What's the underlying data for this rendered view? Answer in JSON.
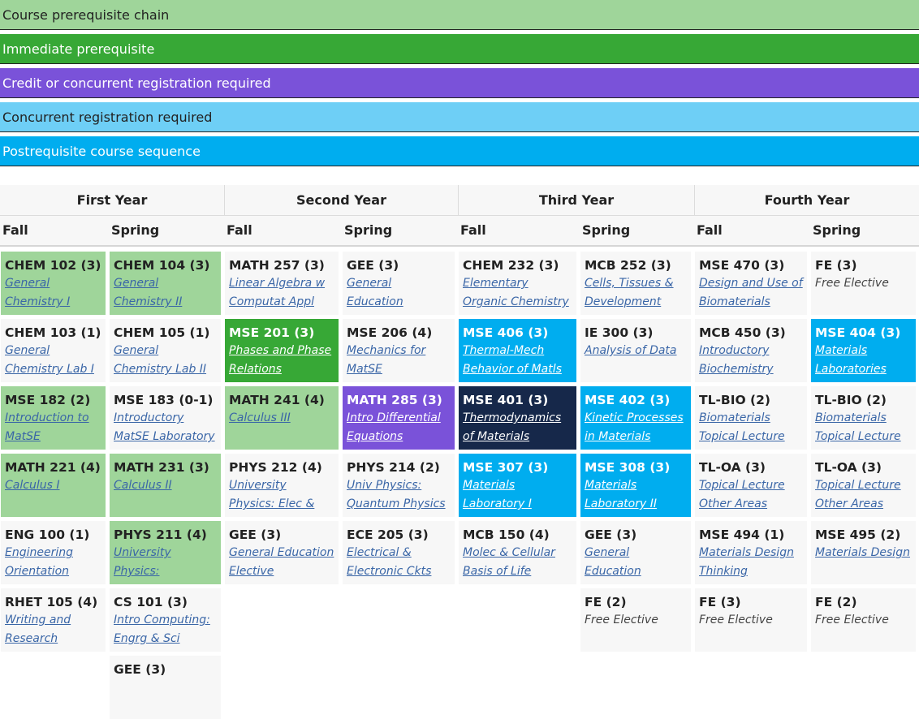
{
  "legend": [
    {
      "label": "Course prerequisite chain",
      "type": "chain"
    },
    {
      "label": "Immediate prerequisite",
      "type": "immediate"
    },
    {
      "label": "Credit or concurrent registration required",
      "type": "credit"
    },
    {
      "label": "Concurrent registration required",
      "type": "concurrent"
    },
    {
      "label": "Postrequisite course sequence",
      "type": "post"
    }
  ],
  "years": [
    "First Year",
    "Second Year",
    "Third Year",
    "Fourth Year"
  ],
  "semesters": [
    "Fall",
    "Spring",
    "Fall",
    "Spring",
    "Fall",
    "Spring",
    "Fall",
    "Spring"
  ],
  "columns": [
    [
      {
        "code": "CHEM 102 (3)",
        "title": "General Chemistry I",
        "type": "chain",
        "link": true
      },
      {
        "code": "CHEM 103 (1)",
        "title": "General Chemistry Lab I",
        "type": "none",
        "link": true
      },
      {
        "code": "MSE 182 (2)",
        "title": "Introduction to MatSE",
        "type": "chain",
        "link": true
      },
      {
        "code": "MATH 221 (4)",
        "title": "Calculus I",
        "type": "chain",
        "link": true
      },
      {
        "code": "ENG 100 (1)",
        "title": "Engineering Orientation",
        "type": "none",
        "link": true
      },
      {
        "code": "RHET 105 (4)",
        "title": "Writing and Research",
        "type": "none",
        "link": true
      }
    ],
    [
      {
        "code": "CHEM 104 (3)",
        "title": "General Chemistry II",
        "type": "chain",
        "link": true
      },
      {
        "code": "CHEM 105 (1)",
        "title": "General Chemistry Lab II",
        "type": "none",
        "link": true
      },
      {
        "code": "MSE 183 (0-1)",
        "title": "Introductory MatSE Laboratory",
        "type": "none",
        "link": true
      },
      {
        "code": "MATH 231 (3)",
        "title": "Calculus II",
        "type": "chain",
        "link": true
      },
      {
        "code": "PHYS 211 (4)",
        "title": "University Physics: Mechanics",
        "type": "chain",
        "link": true
      },
      {
        "code": "CS 101 (3)",
        "title": "Intro Computing: Engrg & Sci",
        "type": "none",
        "link": true
      },
      {
        "code": "GEE (3)",
        "title": "",
        "type": "none",
        "link": false
      }
    ],
    [
      {
        "code": "MATH 257 (3)",
        "title": "Linear Algebra w Computat Appl",
        "type": "none",
        "link": true
      },
      {
        "code": "MSE 201 (3)",
        "title": "Phases and Phase Relations",
        "type": "immediate",
        "link": true
      },
      {
        "code": "MATH 241 (4)",
        "title": "Calculus III",
        "type": "chain",
        "link": true
      },
      {
        "code": "PHYS 212 (4)",
        "title": "University Physics: Elec & Mag",
        "type": "none",
        "link": true
      },
      {
        "code": "GEE (3)",
        "title": "General Education Elective",
        "type": "none",
        "link": true
      }
    ],
    [
      {
        "code": "GEE (3)",
        "title": "General Education Elective",
        "type": "none",
        "link": true
      },
      {
        "code": "MSE 206 (4)",
        "title": "Mechanics for MatSE",
        "type": "none",
        "link": true
      },
      {
        "code": "MATH 285 (3)",
        "title": "Intro Differential Equations",
        "type": "credit",
        "link": true
      },
      {
        "code": "PHYS 214 (2)",
        "title": "Univ Physics: Quantum Physics",
        "type": "none",
        "link": true
      },
      {
        "code": "ECE 205 (3)",
        "title": "Electrical & Electronic Ckts",
        "type": "none",
        "link": true
      }
    ],
    [
      {
        "code": "CHEM 232 (3)",
        "title": "Elementary Organic Chemistry I",
        "type": "none",
        "link": true
      },
      {
        "code": "MSE 406 (3)",
        "title": "Thermal-Mech Behavior of Matls",
        "type": "post",
        "link": true
      },
      {
        "code": "MSE 401 (3)",
        "title": "Thermodynamics of Materials",
        "type": "current",
        "link": true
      },
      {
        "code": "MSE 307 (3)",
        "title": "Materials Laboratory I",
        "type": "post",
        "link": true
      },
      {
        "code": "MCB 150 (4)",
        "title": "Molec & Cellular Basis of Life",
        "type": "none",
        "link": true
      }
    ],
    [
      {
        "code": "MCB 252 (3)",
        "title": "Cells, Tissues & Development",
        "type": "none",
        "link": true
      },
      {
        "code": "IE 300 (3)",
        "title": "Analysis of Data",
        "type": "none",
        "link": true
      },
      {
        "code": "MSE 402 (3)",
        "title": "Kinetic Processes in Materials",
        "type": "post",
        "link": true
      },
      {
        "code": "MSE 308 (3)",
        "title": "Materials Laboratory II",
        "type": "post",
        "link": true
      },
      {
        "code": "GEE (3)",
        "title": "General Education Elective",
        "type": "none",
        "link": true
      },
      {
        "code": "FE (2)",
        "title": "Free Elective",
        "type": "none",
        "link": false
      }
    ],
    [
      {
        "code": "MSE 470 (3)",
        "title": "Design and Use of Biomaterials",
        "type": "none",
        "link": true
      },
      {
        "code": "MCB 450 (3)",
        "title": "Introductory Biochemistry",
        "type": "none",
        "link": true
      },
      {
        "code": "TL-BIO (2)",
        "title": "Biomaterials Topical Lecture",
        "type": "none",
        "link": true
      },
      {
        "code": "TL-OA (3)",
        "title": "Topical Lecture Other Areas",
        "type": "none",
        "link": true
      },
      {
        "code": "MSE 494 (1)",
        "title": "Materials Design Thinking",
        "type": "none",
        "link": true
      },
      {
        "code": "FE (3)",
        "title": "Free Elective",
        "type": "none",
        "link": false
      }
    ],
    [
      {
        "code": "FE (3)",
        "title": "Free Elective",
        "type": "none",
        "link": false
      },
      {
        "code": "MSE 404 (3)",
        "title": "Materials Laboratories",
        "type": "post",
        "link": true
      },
      {
        "code": "TL-BIO (2)",
        "title": "Biomaterials Topical Lecture",
        "type": "none",
        "link": true
      },
      {
        "code": "TL-OA (3)",
        "title": "Topical Lecture Other Areas",
        "type": "none",
        "link": true
      },
      {
        "code": "MSE 495 (2)",
        "title": "Materials Design",
        "type": "none",
        "link": true
      },
      {
        "code": "FE (2)",
        "title": "Free Elective",
        "type": "none",
        "link": false
      }
    ]
  ]
}
